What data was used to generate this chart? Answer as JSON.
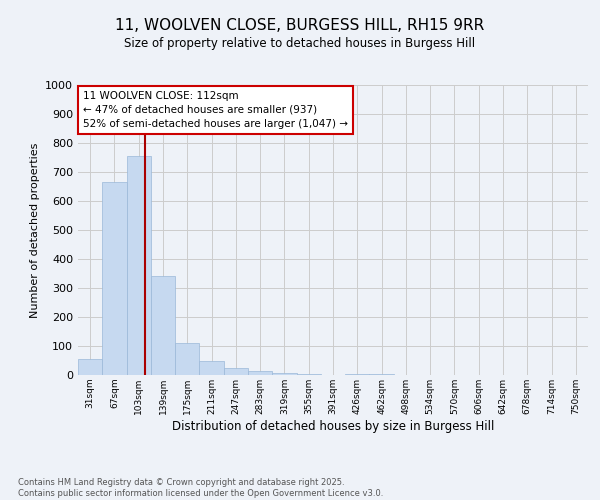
{
  "title": "11, WOOLVEN CLOSE, BURGESS HILL, RH15 9RR",
  "subtitle": "Size of property relative to detached houses in Burgess Hill",
  "xlabel": "Distribution of detached houses by size in Burgess Hill",
  "ylabel": "Number of detached properties",
  "bin_labels": [
    "31sqm",
    "67sqm",
    "103sqm",
    "139sqm",
    "175sqm",
    "211sqm",
    "247sqm",
    "283sqm",
    "319sqm",
    "355sqm",
    "391sqm",
    "426sqm",
    "462sqm",
    "498sqm",
    "534sqm",
    "570sqm",
    "606sqm",
    "642sqm",
    "678sqm",
    "714sqm",
    "750sqm"
  ],
  "bar_values": [
    55,
    665,
    755,
    340,
    110,
    50,
    25,
    13,
    8,
    5,
    0,
    5,
    5,
    0,
    0,
    0,
    0,
    0,
    0,
    0,
    0
  ],
  "bar_color": "#c6d9f0",
  "bar_edge_color": "#9ab8d8",
  "grid_color": "#cccccc",
  "vline_color": "#aa0000",
  "vline_pos": 2.25,
  "annotation_text": "11 WOOLVEN CLOSE: 112sqm\n← 47% of detached houses are smaller (937)\n52% of semi-detached houses are larger (1,047) →",
  "annotation_box_color": "#ffffff",
  "annotation_box_edge": "#cc0000",
  "ylim": [
    0,
    1000
  ],
  "yticks": [
    0,
    100,
    200,
    300,
    400,
    500,
    600,
    700,
    800,
    900,
    1000
  ],
  "footnote": "Contains HM Land Registry data © Crown copyright and database right 2025.\nContains public sector information licensed under the Open Government Licence v3.0.",
  "bg_color": "#eef2f8"
}
